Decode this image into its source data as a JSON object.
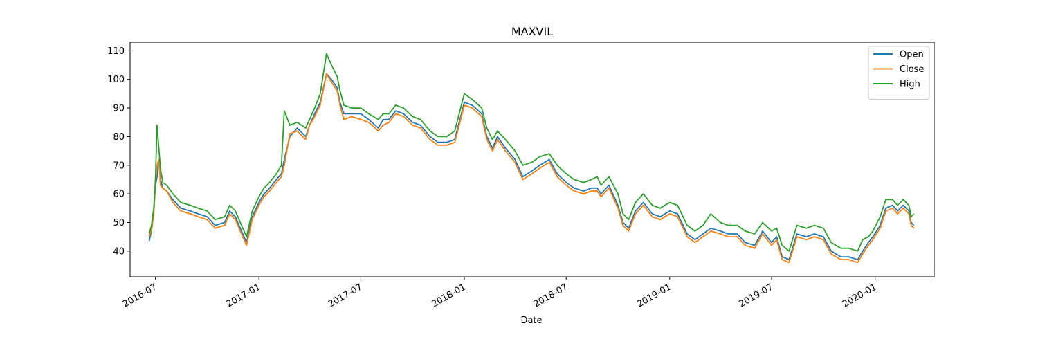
{
  "chart_data": {
    "type": "line",
    "title": "MAXVIL",
    "xlabel": "Date",
    "ylabel": "",
    "xlim": [
      "2016-05-17",
      "2020-04-15"
    ],
    "ylim": [
      31,
      113
    ],
    "yticks": [
      40,
      50,
      60,
      70,
      80,
      90,
      100,
      110
    ],
    "xticks": [
      "2016-07-01",
      "2017-01-01",
      "2017-07-01",
      "2018-01-01",
      "2018-07-01",
      "2019-01-01",
      "2019-07-01",
      "2020-01-01"
    ],
    "xtick_labels": [
      "2016-07",
      "2017-01",
      "2017-07",
      "2018-01",
      "2018-07",
      "2019-01",
      "2019-07",
      "2020-01"
    ],
    "grid": false,
    "legend_position": "top-right",
    "colors": {
      "Open": "#1f77b4",
      "Close": "#ff7f0e",
      "High": "#2ca02c"
    },
    "x": [
      "2016-06-20",
      "2016-06-24",
      "2016-06-28",
      "2016-07-01",
      "2016-07-04",
      "2016-07-07",
      "2016-07-10",
      "2016-07-14",
      "2016-07-21",
      "2016-08-01",
      "2016-08-15",
      "2016-09-01",
      "2016-09-15",
      "2016-10-01",
      "2016-10-15",
      "2016-11-01",
      "2016-11-10",
      "2016-11-20",
      "2016-12-01",
      "2016-12-10",
      "2016-12-20",
      "2017-01-01",
      "2017-01-10",
      "2017-01-20",
      "2017-02-01",
      "2017-02-10",
      "2017-02-15",
      "2017-02-25",
      "2017-03-10",
      "2017-03-25",
      "2017-04-01",
      "2017-04-10",
      "2017-04-20",
      "2017-05-01",
      "2017-05-10",
      "2017-05-20",
      "2017-05-25",
      "2017-06-01",
      "2017-06-15",
      "2017-07-01",
      "2017-07-15",
      "2017-08-01",
      "2017-08-10",
      "2017-08-20",
      "2017-09-01",
      "2017-09-15",
      "2017-10-01",
      "2017-10-15",
      "2017-11-01",
      "2017-11-15",
      "2017-12-01",
      "2017-12-15",
      "2018-01-01",
      "2018-01-15",
      "2018-02-01",
      "2018-02-10",
      "2018-02-20",
      "2018-03-01",
      "2018-03-15",
      "2018-04-01",
      "2018-04-15",
      "2018-05-01",
      "2018-05-15",
      "2018-06-01",
      "2018-06-15",
      "2018-07-01",
      "2018-07-15",
      "2018-08-01",
      "2018-08-15",
      "2018-08-25",
      "2018-09-01",
      "2018-09-15",
      "2018-10-01",
      "2018-10-10",
      "2018-10-20",
      "2018-11-01",
      "2018-11-15",
      "2018-12-01",
      "2018-12-15",
      "2019-01-01",
      "2019-01-15",
      "2019-02-01",
      "2019-02-15",
      "2019-03-01",
      "2019-03-15",
      "2019-04-01",
      "2019-04-15",
      "2019-05-01",
      "2019-05-15",
      "2019-06-01",
      "2019-06-15",
      "2019-07-01",
      "2019-07-10",
      "2019-07-20",
      "2019-08-01",
      "2019-08-15",
      "2019-09-01",
      "2019-09-15",
      "2019-10-01",
      "2019-10-15",
      "2019-11-01",
      "2019-11-15",
      "2019-12-01",
      "2019-12-10",
      "2019-12-20",
      "2019-12-28",
      "2020-01-10",
      "2020-01-20",
      "2020-02-01",
      "2020-02-10",
      "2020-02-20",
      "2020-03-01",
      "2020-03-05",
      "2020-03-10"
    ],
    "series": [
      {
        "name": "Open",
        "values": [
          43.5,
          47,
          53,
          63,
          66,
          72,
          65,
          62,
          61,
          58,
          55,
          54,
          53,
          52,
          49,
          50,
          54,
          52,
          47,
          43,
          52,
          57,
          60,
          62,
          65,
          67,
          72,
          80,
          83,
          80,
          84,
          88,
          92,
          102,
          100,
          97,
          92,
          88,
          88,
          88,
          86,
          83,
          86,
          86,
          89,
          88,
          85,
          84,
          80,
          78,
          78,
          79,
          92,
          91,
          88,
          80,
          76,
          80,
          76,
          72,
          66,
          68,
          70,
          72,
          67,
          64,
          62,
          61,
          62,
          62,
          60,
          63,
          56,
          50,
          48,
          54,
          57,
          53,
          52,
          54,
          53,
          46,
          44,
          46,
          48,
          47,
          46,
          46,
          43,
          42,
          47,
          43,
          45,
          38,
          37,
          46,
          45,
          46,
          45,
          40,
          38,
          38,
          37,
          40,
          43,
          45,
          49,
          55,
          56,
          54,
          56,
          54,
          50,
          49
        ]
      },
      {
        "name": "Close",
        "values": [
          45,
          47.5,
          53,
          64,
          70,
          72,
          63,
          62,
          61,
          57,
          54,
          53,
          52,
          51,
          48,
          49,
          53,
          51,
          46,
          42,
          51,
          56,
          59,
          61,
          64,
          66,
          70,
          81,
          82,
          79,
          84,
          87,
          91,
          102,
          99,
          96,
          91,
          86,
          87,
          86,
          85,
          82,
          84,
          85,
          88,
          87,
          84,
          83,
          79,
          77,
          77,
          78,
          91,
          90,
          87,
          79,
          75,
          79,
          75,
          71,
          65,
          67,
          69,
          71,
          66,
          63,
          61,
          60,
          61,
          61,
          59,
          62,
          55,
          49,
          47,
          53,
          56,
          52,
          51,
          53,
          52,
          45,
          43,
          45,
          47,
          46,
          45,
          45,
          42,
          41,
          46,
          42,
          44,
          37,
          36,
          45,
          44,
          45,
          44,
          39,
          37,
          37,
          36,
          39,
          42,
          44,
          48,
          54,
          55,
          53,
          55,
          53,
          49,
          48
        ]
      },
      {
        "name": "High",
        "values": [
          46,
          49,
          55,
          65,
          84,
          76,
          69,
          64,
          63,
          60,
          57,
          56,
          55,
          54,
          51,
          52,
          56,
          54,
          49,
          45,
          54,
          59,
          62,
          64,
          67,
          70,
          89,
          84,
          85,
          83,
          86,
          90,
          95,
          109,
          105,
          101,
          96,
          91,
          90,
          90,
          88,
          86,
          88,
          88,
          91,
          90,
          87,
          86,
          82,
          80,
          80,
          82,
          95,
          93,
          90,
          83,
          79,
          82,
          79,
          75,
          70,
          71,
          73,
          74,
          70,
          67,
          65,
          64,
          65,
          66,
          63,
          66,
          60,
          53,
          51,
          57,
          60,
          56,
          55,
          57,
          56,
          49,
          47,
          49,
          53,
          50,
          49,
          49,
          47,
          46,
          50,
          47,
          48,
          42,
          40,
          49,
          48,
          49,
          48,
          43,
          41,
          41,
          40,
          44,
          45,
          47,
          52,
          58,
          58,
          56,
          58,
          56,
          52,
          53
        ]
      }
    ]
  }
}
